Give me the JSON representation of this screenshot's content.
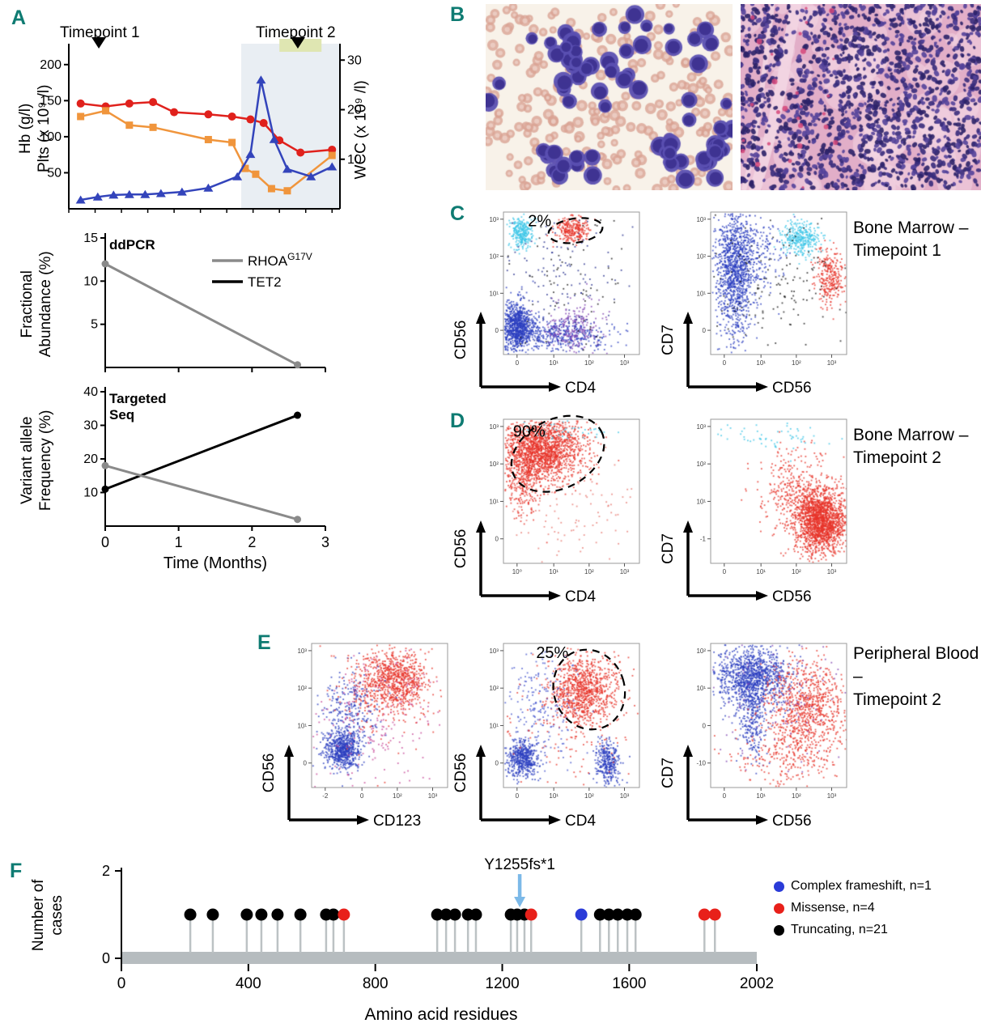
{
  "panels": {
    "a": {
      "label": "A"
    },
    "b": {
      "label": "B"
    },
    "c": {
      "label": "C",
      "row_label": "Bone Marrow –\nTimepoint 1"
    },
    "d": {
      "label": "D",
      "row_label": "Bone Marrow –\nTimepoint 2"
    },
    "e": {
      "label": "E",
      "row_label": "Peripheral Blood –\nTimepoint 2"
    },
    "f": {
      "label": "F"
    }
  },
  "histology": {
    "aspirate": {
      "bg": "#f8f2e9",
      "rbc": "#d9a294",
      "rbc_inner": "#f0d6cd",
      "cell_body": "#5b50b2",
      "cell_nucleus": "#3d3290"
    },
    "biopsy": {
      "bg": "#e2aec8",
      "nucleus": "#392c7c",
      "nucleus_alt": "#54439a",
      "nucleus_dark": "#2c2268",
      "accent": "#d6487a",
      "light_patch": "#f3d6e3"
    }
  },
  "chart_data": [
    {
      "id": "clinical-course",
      "type": "line",
      "x_range": [
        0,
        10.3
      ],
      "left_axis": {
        "label": "Hb (g/l)\nPlts (x 10⁹ /l)",
        "range": [
          0,
          220
        ],
        "ticks": [
          200,
          150,
          100,
          50
        ]
      },
      "right_axis": {
        "label": "WCC (x 10⁹ /l)",
        "range": [
          0,
          32
        ],
        "ticks": [
          30,
          20,
          10
        ]
      },
      "shaded_region": {
        "x0": 6.55,
        "x1": 10.3,
        "color": "#e9eef3"
      },
      "timepoints": [
        {
          "label": "Timepoint 1",
          "x": 1.14
        },
        {
          "label": "Timepoint 2",
          "x": 8.7,
          "bar": {
            "x0": 8.0,
            "x1": 9.6,
            "color": "#dfe6b2"
          }
        }
      ],
      "series": [
        {
          "name": "Hb",
          "color": "#e0211c",
          "marker": "circle",
          "axis": "left",
          "x": [
            0.45,
            1.4,
            2.3,
            3.2,
            4.0,
            5.3,
            6.2,
            6.9,
            7.4,
            8.0,
            8.8,
            10.0
          ],
          "y": [
            146,
            142,
            146,
            148,
            134,
            131,
            128,
            124,
            119,
            95,
            78,
            82
          ]
        },
        {
          "name": "Plts",
          "color": "#f0953c",
          "marker": "square",
          "axis": "left",
          "x": [
            0.45,
            1.4,
            2.3,
            3.2,
            5.3,
            6.2,
            6.7,
            7.1,
            7.7,
            8.3,
            10.0
          ],
          "y": [
            128,
            136,
            116,
            113,
            96,
            92,
            56,
            48,
            28,
            25,
            74
          ]
        },
        {
          "name": "WCC",
          "color": "#3344bb",
          "marker": "triangle",
          "axis": "right",
          "x": [
            0.45,
            1.1,
            1.7,
            2.3,
            2.9,
            3.5,
            4.3,
            5.3,
            6.4,
            6.9,
            7.3,
            7.8,
            8.3,
            9.2,
            10.0
          ],
          "y": [
            1.8,
            2.4,
            2.8,
            2.9,
            2.9,
            3.1,
            3.4,
            4.2,
            6.5,
            11.0,
            26.0,
            14.0,
            8.0,
            6.5,
            8.5
          ]
        }
      ]
    },
    {
      "id": "ddpcr",
      "type": "line",
      "panel_tag": "ddPCR",
      "x_range": [
        0,
        3
      ],
      "x_ticks": [
        0,
        1,
        2,
        3
      ],
      "y_axis": {
        "label": "Fractional\nAbundance (%)",
        "range": [
          0,
          15
        ],
        "ticks": [
          15,
          10,
          5
        ]
      },
      "legend": [
        {
          "base": "RHOA",
          "sup": "G17V",
          "color": "#8a8a8a"
        },
        {
          "base": "TET2",
          "sup": "",
          "color": "#000000"
        }
      ],
      "series": [
        {
          "name": "RHOA G17V",
          "color": "#8a8a8a",
          "x": [
            0,
            2.62
          ],
          "y": [
            12,
            0.3
          ]
        }
      ]
    },
    {
      "id": "targeted-seq",
      "type": "line",
      "panel_tag": "Targeted\nSeq",
      "x_range": [
        0,
        3
      ],
      "x_ticks": [
        0,
        1,
        2,
        3
      ],
      "xlabel": "Time (Months)",
      "y_axis": {
        "label": "Variant allele\nFrequency (%)",
        "range": [
          0,
          40
        ],
        "ticks": [
          40,
          30,
          20,
          10
        ]
      },
      "series": [
        {
          "name": "TET2",
          "color": "#000000",
          "x": [
            0,
            2.62
          ],
          "y": [
            11,
            33
          ]
        },
        {
          "name": "RHOA G17V",
          "color": "#8a8a8a",
          "x": [
            0,
            2.62
          ],
          "y": [
            18,
            2
          ]
        }
      ]
    },
    {
      "id": "bm-tp1-cd56-vs-cd4",
      "type": "flow-scatter",
      "xlabel": "CD4",
      "ylabel": "CD56",
      "x_ticks": [
        "0",
        "10¹",
        "10²",
        "10³"
      ],
      "y_ticks": [
        "10³",
        "10²",
        "10¹",
        "0"
      ],
      "annotation": {
        "text": "2%",
        "tx": 0.18,
        "ty": 0.1,
        "ellipse": {
          "cx": 0.53,
          "cy": 0.13,
          "rx": 0.2,
          "ry": 0.085,
          "rot": -8
        }
      },
      "clusters": [
        {
          "cx": 0.12,
          "cy": 0.14,
          "sx": 0.045,
          "sy": 0.055,
          "n": 280,
          "color": "#3ec6e8"
        },
        {
          "cx": 0.5,
          "cy": 0.12,
          "sx": 0.06,
          "sy": 0.045,
          "n": 260,
          "color": "#e8352a"
        },
        {
          "cx": 0.1,
          "cy": 0.8,
          "sx": 0.065,
          "sy": 0.085,
          "n": 900,
          "color": "#2b3fc0"
        },
        {
          "cx": 0.42,
          "cy": 0.86,
          "sx": 0.18,
          "sy": 0.055,
          "n": 380,
          "color": "#2b3fc0"
        },
        {
          "cx": 0.52,
          "cy": 0.8,
          "sx": 0.1,
          "sy": 0.09,
          "n": 220,
          "color": "#8246b4"
        },
        {
          "cx": 0.4,
          "cy": 0.45,
          "sx": 0.28,
          "sy": 0.28,
          "n": 160,
          "color": "#26308e"
        },
        {
          "cx": 0.5,
          "cy": 0.5,
          "sx": 0.3,
          "sy": 0.3,
          "n": 90,
          "color": "#1a1a1a"
        }
      ]
    },
    {
      "id": "bm-tp1-cd7-vs-cd56",
      "type": "flow-scatter",
      "xlabel": "CD56",
      "ylabel": "CD7",
      "x_ticks": [
        "0",
        "10¹",
        "10²",
        "10³"
      ],
      "y_ticks": [
        "10³",
        "10²",
        "10¹",
        "0"
      ],
      "clusters": [
        {
          "cx": 0.17,
          "cy": 0.42,
          "sx": 0.07,
          "sy": 0.22,
          "n": 1100,
          "color": "#2b3fc0"
        },
        {
          "cx": 0.3,
          "cy": 0.3,
          "sx": 0.12,
          "sy": 0.12,
          "n": 250,
          "color": "#2b3fc0"
        },
        {
          "cx": 0.66,
          "cy": 0.18,
          "sx": 0.075,
          "sy": 0.06,
          "n": 320,
          "color": "#3ec6e8"
        },
        {
          "cx": 0.87,
          "cy": 0.45,
          "sx": 0.055,
          "sy": 0.1,
          "n": 280,
          "color": "#e8352a"
        },
        {
          "cx": 0.5,
          "cy": 0.5,
          "sx": 0.3,
          "sy": 0.28,
          "n": 160,
          "color": "#1a1a1a"
        }
      ]
    },
    {
      "id": "bm-tp2-cd56-vs-cd4",
      "type": "flow-scatter",
      "xlabel": "CD4",
      "ylabel": "CD56",
      "x_ticks": [
        "10⁰",
        "10¹",
        "10²",
        "10³"
      ],
      "y_ticks": [
        "10³",
        "10²",
        "10¹",
        "0"
      ],
      "annotation": {
        "text": "90%",
        "tx": 0.07,
        "ty": 0.12,
        "ellipse": {
          "cx": 0.4,
          "cy": 0.24,
          "rx": 0.36,
          "ry": 0.24,
          "rot": -27
        }
      },
      "clusters": [
        {
          "cx": 0.28,
          "cy": 0.2,
          "sx": 0.15,
          "sy": 0.11,
          "n": 1700,
          "color": "#e8352a"
        },
        {
          "cx": 0.14,
          "cy": 0.38,
          "sx": 0.09,
          "sy": 0.14,
          "n": 350,
          "color": "#e8352a"
        },
        {
          "cx": 0.45,
          "cy": 0.6,
          "sx": 0.3,
          "sy": 0.22,
          "n": 130,
          "color": "#e87a72"
        },
        {
          "cx": 0.5,
          "cy": 0.07,
          "sx": 0.2,
          "sy": 0.04,
          "n": 45,
          "color": "#3ec6e8"
        }
      ]
    },
    {
      "id": "bm-tp2-cd7-vs-cd56",
      "type": "flow-scatter",
      "xlabel": "CD56",
      "ylabel": "CD7",
      "x_ticks": [
        "0",
        "10¹",
        "10²",
        "10³"
      ],
      "y_ticks": [
        "10³",
        "10²",
        "10¹",
        "-1"
      ],
      "clusters": [
        {
          "cx": 0.8,
          "cy": 0.7,
          "sx": 0.09,
          "sy": 0.11,
          "n": 1700,
          "color": "#e8352a"
        },
        {
          "cx": 0.62,
          "cy": 0.5,
          "sx": 0.14,
          "sy": 0.16,
          "n": 380,
          "color": "#e8352a"
        },
        {
          "cx": 0.5,
          "cy": 0.12,
          "sx": 0.22,
          "sy": 0.06,
          "n": 60,
          "color": "#3ec6e8"
        }
      ]
    },
    {
      "id": "pb-tp2-cd56-vs-cd123",
      "type": "flow-scatter",
      "xlabel": "CD123",
      "ylabel": "CD56",
      "x_ticks": [
        "-2",
        "0",
        "10²",
        "10³"
      ],
      "y_ticks": [
        "10³",
        "10²",
        "10¹",
        "0"
      ],
      "clusters": [
        {
          "cx": 0.6,
          "cy": 0.25,
          "sx": 0.13,
          "sy": 0.11,
          "n": 850,
          "color": "#e8352a"
        },
        {
          "cx": 0.22,
          "cy": 0.73,
          "sx": 0.06,
          "sy": 0.07,
          "n": 650,
          "color": "#2b3fc0"
        },
        {
          "cx": 0.27,
          "cy": 0.45,
          "sx": 0.11,
          "sy": 0.14,
          "n": 260,
          "color": "#2b3fc0"
        },
        {
          "cx": 0.5,
          "cy": 0.5,
          "sx": 0.27,
          "sy": 0.27,
          "n": 200,
          "color": "#c84a9a"
        },
        {
          "cx": 0.45,
          "cy": 0.35,
          "sx": 0.2,
          "sy": 0.2,
          "n": 120,
          "color": "#e8352a"
        }
      ]
    },
    {
      "id": "pb-tp2-cd56-vs-cd4",
      "type": "flow-scatter",
      "xlabel": "CD4",
      "ylabel": "CD56",
      "x_ticks": [
        "0",
        "10¹",
        "10²",
        "10³"
      ],
      "y_ticks": [
        "10³",
        "10²",
        "10¹",
        "0"
      ],
      "annotation": {
        "text": "25%",
        "tx": 0.24,
        "ty": 0.1,
        "ellipse": {
          "cx": 0.63,
          "cy": 0.32,
          "rx": 0.26,
          "ry": 0.28,
          "rot": -18
        }
      },
      "clusters": [
        {
          "cx": 0.58,
          "cy": 0.33,
          "sx": 0.12,
          "sy": 0.12,
          "n": 950,
          "color": "#e8352a"
        },
        {
          "cx": 0.14,
          "cy": 0.8,
          "sx": 0.055,
          "sy": 0.065,
          "n": 480,
          "color": "#2b3fc0"
        },
        {
          "cx": 0.76,
          "cy": 0.82,
          "sx": 0.045,
          "sy": 0.075,
          "n": 320,
          "color": "#2b3fc0"
        },
        {
          "cx": 0.25,
          "cy": 0.45,
          "sx": 0.14,
          "sy": 0.2,
          "n": 220,
          "color": "#4a5ad0"
        },
        {
          "cx": 0.5,
          "cy": 0.6,
          "sx": 0.3,
          "sy": 0.25,
          "n": 120,
          "color": "#e8352a"
        }
      ]
    },
    {
      "id": "pb-tp2-cd7-vs-cd56",
      "type": "flow-scatter",
      "xlabel": "CD56",
      "ylabel": "CD7",
      "x_ticks": [
        "0",
        "10¹",
        "10²",
        "10³"
      ],
      "y_ticks": [
        "10²",
        "10¹",
        "0",
        "-10"
      ],
      "clusters": [
        {
          "cx": 0.3,
          "cy": 0.22,
          "sx": 0.14,
          "sy": 0.11,
          "n": 1100,
          "color": "#2b3fc0"
        },
        {
          "cx": 0.31,
          "cy": 0.5,
          "sx": 0.05,
          "sy": 0.16,
          "n": 280,
          "color": "#2b3fc0"
        },
        {
          "cx": 0.7,
          "cy": 0.45,
          "sx": 0.14,
          "sy": 0.17,
          "n": 850,
          "color": "#e8352a"
        },
        {
          "cx": 0.55,
          "cy": 0.78,
          "sx": 0.2,
          "sy": 0.1,
          "n": 220,
          "color": "#e8352a"
        },
        {
          "cx": 0.5,
          "cy": 0.35,
          "sx": 0.25,
          "sy": 0.25,
          "n": 120,
          "color": "#8246b4"
        }
      ]
    },
    {
      "id": "tet2-mutation-lollipop",
      "type": "lollipop",
      "xlabel": "Amino acid residues",
      "ylabel": "Number of\ncases",
      "x_range": [
        0,
        2002
      ],
      "x_ticks": [
        0,
        400,
        800,
        1200,
        1600,
        2002
      ],
      "y_ticks": [
        0,
        2
      ],
      "annotation": {
        "text": "Y1255fs*1",
        "residue": 1255,
        "arrow_color": "#7cb9e8"
      },
      "legend": [
        {
          "label": "Complex frameshift, n=1",
          "color": "#2a3bd8",
          "type": "complex"
        },
        {
          "label": "Missense, n=4",
          "color": "#e8201a",
          "type": "missense"
        },
        {
          "label": "Truncating, n=21",
          "color": "#000000",
          "type": "truncating"
        }
      ],
      "mutations": [
        {
          "pos": 217,
          "type": "truncating"
        },
        {
          "pos": 288,
          "type": "truncating"
        },
        {
          "pos": 395,
          "type": "truncating"
        },
        {
          "pos": 441,
          "type": "truncating"
        },
        {
          "pos": 492,
          "type": "truncating"
        },
        {
          "pos": 564,
          "type": "truncating"
        },
        {
          "pos": 645,
          "type": "truncating"
        },
        {
          "pos": 668,
          "type": "truncating"
        },
        {
          "pos": 701,
          "type": "missense"
        },
        {
          "pos": 995,
          "type": "truncating"
        },
        {
          "pos": 1023,
          "type": "truncating"
        },
        {
          "pos": 1051,
          "type": "truncating"
        },
        {
          "pos": 1092,
          "type": "truncating"
        },
        {
          "pos": 1117,
          "type": "truncating"
        },
        {
          "pos": 1227,
          "type": "truncating"
        },
        {
          "pos": 1247,
          "type": "truncating"
        },
        {
          "pos": 1270,
          "type": "truncating"
        },
        {
          "pos": 1291,
          "type": "missense"
        },
        {
          "pos": 1449,
          "type": "complex"
        },
        {
          "pos": 1508,
          "type": "truncating"
        },
        {
          "pos": 1536,
          "type": "truncating"
        },
        {
          "pos": 1564,
          "type": "truncating"
        },
        {
          "pos": 1594,
          "type": "truncating"
        },
        {
          "pos": 1620,
          "type": "truncating"
        },
        {
          "pos": 1837,
          "type": "missense"
        },
        {
          "pos": 1870,
          "type": "missense"
        }
      ]
    }
  ]
}
